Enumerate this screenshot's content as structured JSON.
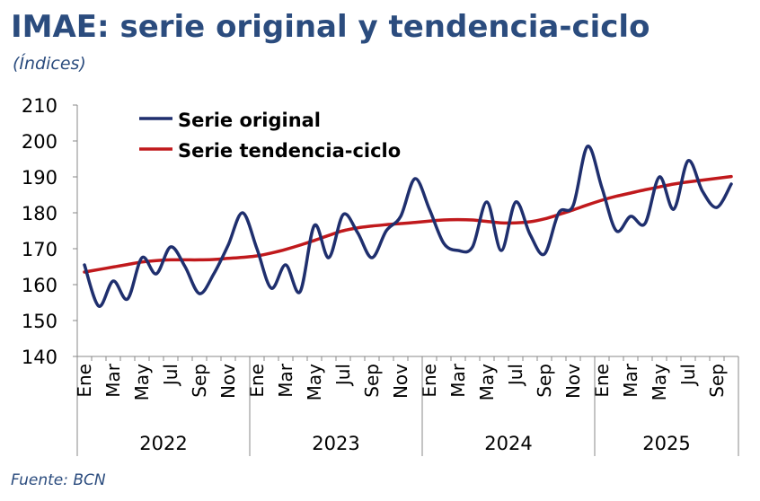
{
  "title": "IMAE: serie original y tendencia-ciclo",
  "subtitle": "(Índices)",
  "source": "Fuente: BCN",
  "colors": {
    "title": "#2b4c7e",
    "original": "#1f2f6e",
    "trend": "#c0191c",
    "axis": "#888888"
  },
  "chart_data": {
    "type": "line",
    "ylim": [
      140,
      210
    ],
    "yticks": [
      140,
      150,
      160,
      170,
      180,
      190,
      200,
      210
    ],
    "grid": false,
    "legend_position": "top-left",
    "month_labels": [
      "Ene",
      "",
      "Mar",
      "",
      "May",
      "",
      "Jul",
      "",
      "Sep",
      "",
      "Nov",
      "",
      "Ene",
      "",
      "Mar",
      "",
      "May",
      "",
      "Jul",
      "",
      "Sep",
      "",
      "Nov",
      "",
      "Ene",
      "",
      "Mar",
      "",
      "May",
      "",
      "Jul",
      "",
      "Sep",
      "",
      "Nov",
      "",
      "Ene",
      "",
      "Mar",
      "",
      "May",
      "",
      "Jul",
      "",
      "Sep",
      ""
    ],
    "years": [
      {
        "label": "2022",
        "start": 0,
        "count": 12
      },
      {
        "label": "2023",
        "start": 12,
        "count": 12
      },
      {
        "label": "2024",
        "start": 24,
        "count": 12
      },
      {
        "label": "2025",
        "start": 36,
        "count": 10
      }
    ],
    "series": [
      {
        "name": "Serie original",
        "values": [
          165.5,
          154,
          161,
          156,
          167.5,
          163,
          170.5,
          165,
          157.5,
          163,
          171,
          180,
          170,
          159,
          165.5,
          158,
          176.5,
          167.5,
          179.5,
          174.5,
          167.5,
          175,
          179,
          189.5,
          181,
          171.5,
          169.5,
          170.5,
          183,
          169.5,
          183,
          174,
          168.5,
          180,
          182,
          198.5,
          187,
          175,
          179,
          177,
          190,
          181,
          194.5,
          186,
          181.5,
          188
        ]
      },
      {
        "name": "Serie tendencia-ciclo",
        "values": [
          163.5,
          164.2,
          164.9,
          165.6,
          166.3,
          166.7,
          166.9,
          166.9,
          166.9,
          167,
          167.3,
          167.6,
          168,
          168.8,
          169.8,
          171,
          172.3,
          173.7,
          175,
          175.8,
          176.3,
          176.7,
          177,
          177.3,
          177.7,
          178,
          178.1,
          178,
          177.6,
          177.2,
          177.2,
          177.5,
          178.3,
          179.5,
          180.8,
          182.2,
          183.5,
          184.6,
          185.5,
          186.4,
          187.2,
          188,
          188.6,
          189.1,
          189.6,
          190.1
        ]
      }
    ]
  }
}
